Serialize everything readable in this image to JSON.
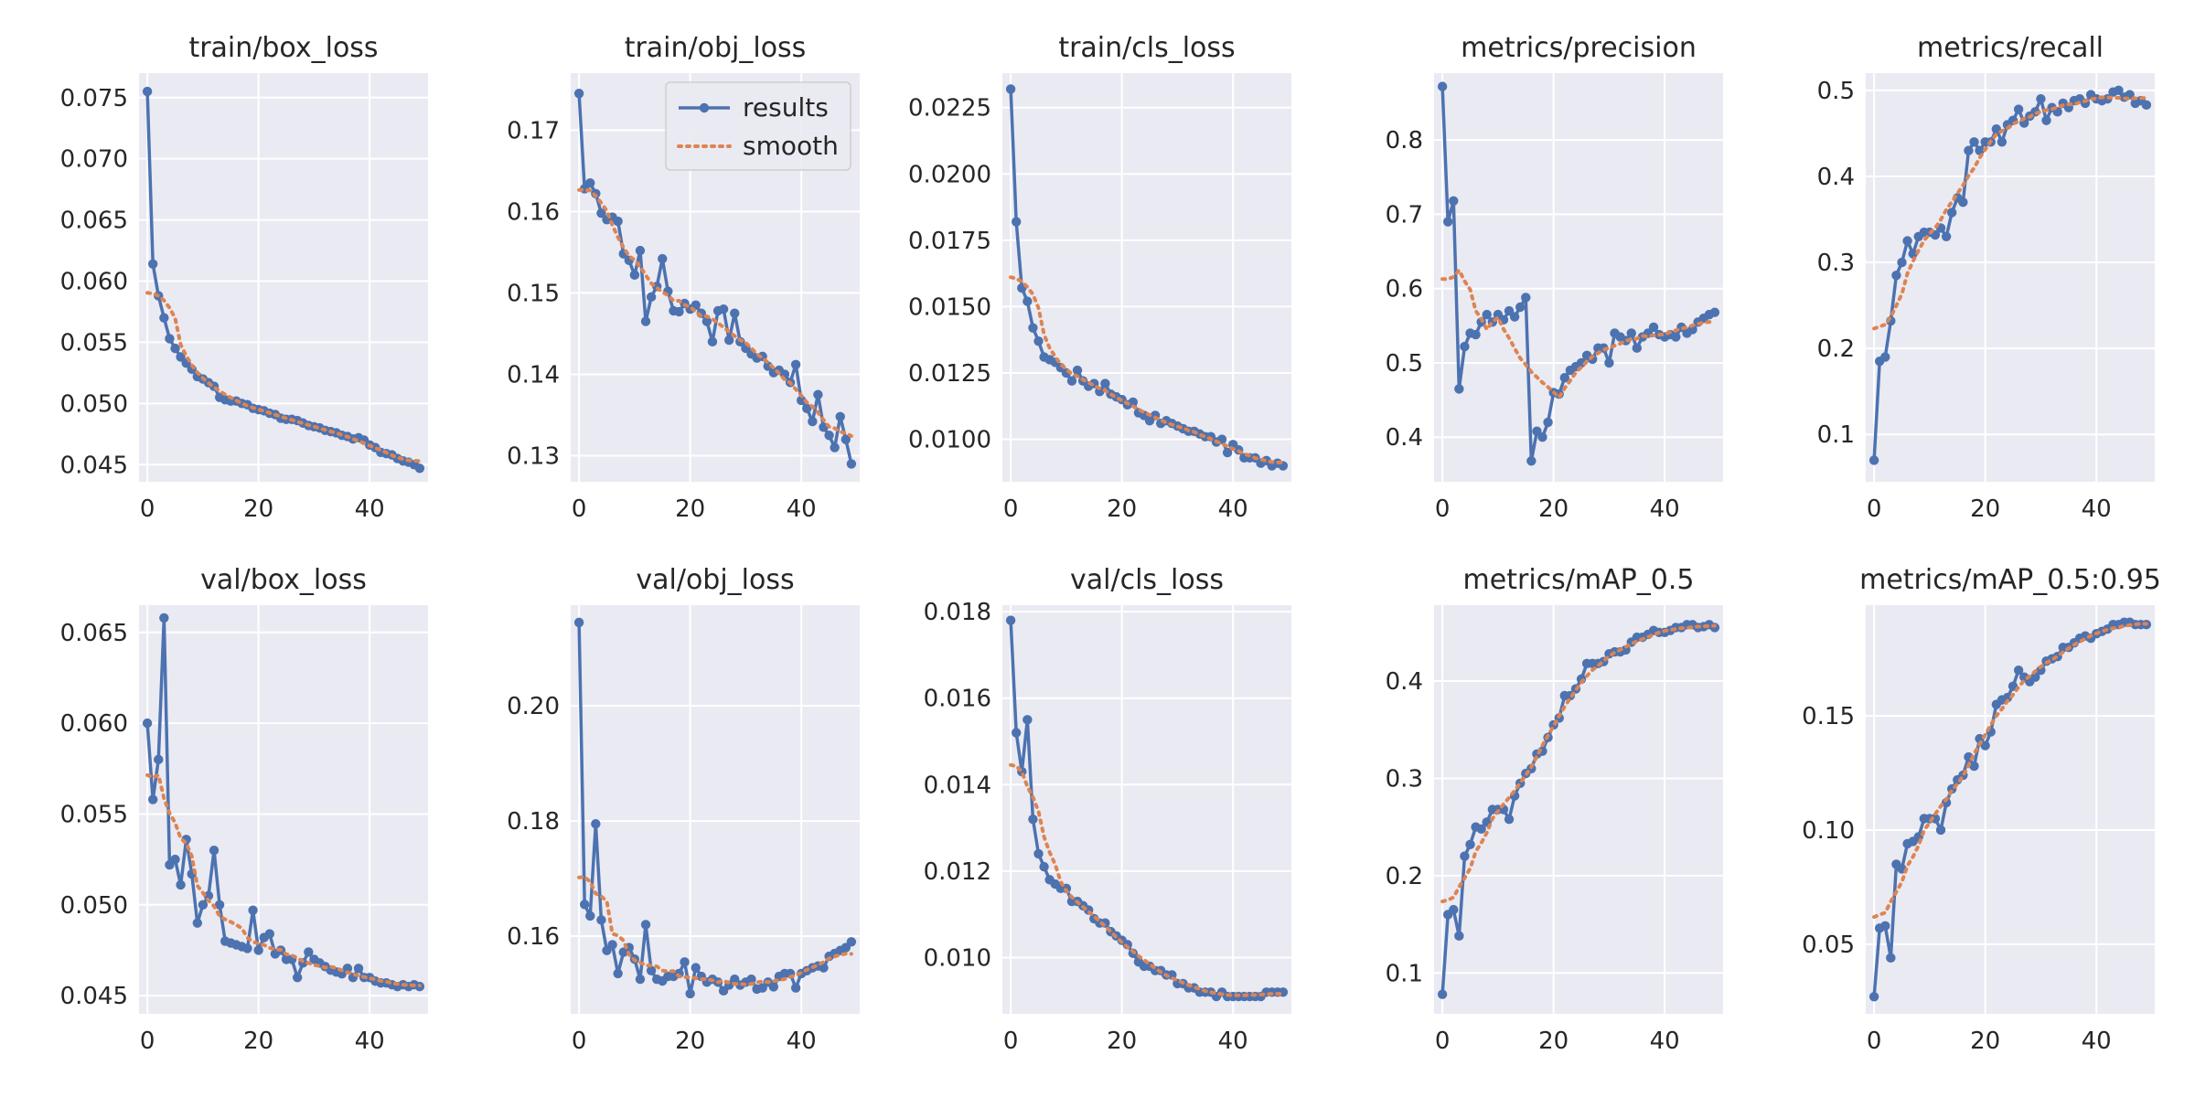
{
  "colors": {
    "results": "#4c72b0",
    "smooth": "#dd8452",
    "panel_bg": "#eaeaf2",
    "grid": "#ffffff"
  },
  "legend": {
    "results_label": "results",
    "smooth_label": "smooth"
  },
  "chart_data": [
    {
      "type": "line",
      "title": "train/box_loss",
      "legend": false,
      "grid": true,
      "xlim": [
        -1.5,
        50.5
      ],
      "ylim": [
        0.0436,
        0.077
      ],
      "xticks": [
        0,
        20,
        40
      ],
      "yticks": [
        0.045,
        0.05,
        0.055,
        0.06,
        0.065,
        0.07,
        0.075
      ],
      "ytick_labels": [
        "0.045",
        "0.050",
        "0.055",
        "0.060",
        "0.065",
        "0.070",
        "0.075"
      ],
      "results": [
        0.0755,
        0.0614,
        0.0588,
        0.057,
        0.0553,
        0.0545,
        0.0538,
        0.0533,
        0.0528,
        0.0522,
        0.052,
        0.0517,
        0.0514,
        0.0505,
        0.0503,
        0.0502,
        0.0502,
        0.05,
        0.0499,
        0.0496,
        0.0495,
        0.0494,
        0.0492,
        0.0491,
        0.0488,
        0.0487,
        0.0487,
        0.0486,
        0.0484,
        0.0482,
        0.0481,
        0.048,
        0.0478,
        0.0477,
        0.0476,
        0.0474,
        0.0473,
        0.0471,
        0.0472,
        0.047,
        0.0466,
        0.0464,
        0.046,
        0.0459,
        0.0458,
        0.0455,
        0.0453,
        0.0452,
        0.045,
        0.0447
      ]
    },
    {
      "type": "line",
      "title": "train/obj_loss",
      "legend": true,
      "grid": true,
      "xlim": [
        -1.5,
        50.5
      ],
      "ylim": [
        0.1268,
        0.177
      ],
      "xticks": [
        0,
        20,
        40
      ],
      "yticks": [
        0.13,
        0.14,
        0.15,
        0.16,
        0.17
      ],
      "ytick_labels": [
        "0.13",
        "0.14",
        "0.15",
        "0.16",
        "0.17"
      ],
      "results": [
        0.1745,
        0.1628,
        0.1635,
        0.1622,
        0.1598,
        0.159,
        0.1593,
        0.1588,
        0.1548,
        0.154,
        0.1522,
        0.1552,
        0.1465,
        0.1495,
        0.1508,
        0.1542,
        0.1502,
        0.1478,
        0.1477,
        0.1487,
        0.148,
        0.1485,
        0.1475,
        0.1465,
        0.144,
        0.1478,
        0.148,
        0.1442,
        0.1475,
        0.144,
        0.1432,
        0.1425,
        0.142,
        0.1422,
        0.141,
        0.1402,
        0.1405,
        0.14,
        0.139,
        0.1412,
        0.1368,
        0.1358,
        0.1342,
        0.1375,
        0.1335,
        0.1325,
        0.131,
        0.1348,
        0.132,
        0.129
      ]
    },
    {
      "type": "line",
      "title": "train/cls_loss",
      "legend": false,
      "grid": true,
      "xlim": [
        -1.5,
        50.5
      ],
      "ylim": [
        0.0084,
        0.0238
      ],
      "xticks": [
        0,
        20,
        40
      ],
      "yticks": [
        0.01,
        0.0125,
        0.015,
        0.0175,
        0.02,
        0.0225
      ],
      "ytick_labels": [
        "0.0100",
        "0.0125",
        "0.0150",
        "0.0175",
        "0.0200",
        "0.0225"
      ],
      "results": [
        0.0232,
        0.0182,
        0.0157,
        0.0152,
        0.0142,
        0.0137,
        0.0131,
        0.013,
        0.0129,
        0.0127,
        0.0125,
        0.0122,
        0.0126,
        0.0122,
        0.012,
        0.0121,
        0.0118,
        0.0121,
        0.0117,
        0.0116,
        0.0115,
        0.0113,
        0.0114,
        0.011,
        0.0109,
        0.0107,
        0.0109,
        0.0106,
        0.0107,
        0.0106,
        0.0105,
        0.0104,
        0.0103,
        0.0103,
        0.0102,
        0.0101,
        0.0101,
        0.0099,
        0.01,
        0.0095,
        0.0098,
        0.0096,
        0.0093,
        0.0093,
        0.0093,
        0.0091,
        0.0092,
        0.009,
        0.0091,
        0.009
      ]
    },
    {
      "type": "line",
      "title": "metrics/precision",
      "legend": false,
      "grid": true,
      "xlim": [
        -1.5,
        50.5
      ],
      "ylim": [
        0.34,
        0.89
      ],
      "xticks": [
        0,
        20,
        40
      ],
      "yticks": [
        0.4,
        0.5,
        0.6,
        0.7,
        0.8
      ],
      "ytick_labels": [
        "0.4",
        "0.5",
        "0.6",
        "0.7",
        "0.8"
      ],
      "results": [
        0.872,
        0.69,
        0.718,
        0.465,
        0.522,
        0.54,
        0.538,
        0.555,
        0.565,
        0.555,
        0.565,
        0.558,
        0.57,
        0.562,
        0.575,
        0.588,
        0.368,
        0.408,
        0.4,
        0.42,
        0.46,
        0.458,
        0.48,
        0.49,
        0.495,
        0.5,
        0.51,
        0.505,
        0.52,
        0.52,
        0.5,
        0.54,
        0.535,
        0.53,
        0.54,
        0.52,
        0.535,
        0.54,
        0.548,
        0.538,
        0.535,
        0.538,
        0.535,
        0.548,
        0.54,
        0.545,
        0.555,
        0.56,
        0.565,
        0.568
      ]
    },
    {
      "type": "line",
      "title": "metrics/recall",
      "legend": false,
      "grid": true,
      "xlim": [
        -1.5,
        50.5
      ],
      "ylim": [
        0.045,
        0.52
      ],
      "xticks": [
        0,
        20,
        40
      ],
      "yticks": [
        0.1,
        0.2,
        0.3,
        0.4,
        0.5
      ],
      "ytick_labels": [
        "0.1",
        "0.2",
        "0.3",
        "0.4",
        "0.5"
      ],
      "results": [
        0.07,
        0.185,
        0.19,
        0.232,
        0.285,
        0.3,
        0.325,
        0.31,
        0.33,
        0.335,
        0.335,
        0.332,
        0.34,
        0.33,
        0.358,
        0.375,
        0.37,
        0.43,
        0.44,
        0.43,
        0.44,
        0.44,
        0.455,
        0.44,
        0.46,
        0.465,
        0.478,
        0.462,
        0.47,
        0.475,
        0.49,
        0.465,
        0.48,
        0.475,
        0.485,
        0.48,
        0.488,
        0.49,
        0.485,
        0.495,
        0.49,
        0.488,
        0.49,
        0.498,
        0.5,
        0.492,
        0.495,
        0.485,
        0.488,
        0.483
      ]
    },
    {
      "type": "line",
      "title": "val/box_loss",
      "legend": false,
      "grid": true,
      "xlim": [
        -1.5,
        50.5
      ],
      "ylim": [
        0.044,
        0.0665
      ],
      "xticks": [
        0,
        20,
        40
      ],
      "yticks": [
        0.045,
        0.05,
        0.055,
        0.06,
        0.065
      ],
      "ytick_labels": [
        "0.045",
        "0.050",
        "0.055",
        "0.060",
        "0.065"
      ],
      "results": [
        0.06,
        0.0558,
        0.058,
        0.0658,
        0.0522,
        0.0525,
        0.0511,
        0.0536,
        0.0517,
        0.049,
        0.05,
        0.0505,
        0.053,
        0.05,
        0.048,
        0.0479,
        0.0478,
        0.0477,
        0.0476,
        0.0497,
        0.0475,
        0.0482,
        0.0484,
        0.0473,
        0.0475,
        0.047,
        0.047,
        0.046,
        0.0468,
        0.0474,
        0.047,
        0.0468,
        0.0466,
        0.0464,
        0.0463,
        0.0462,
        0.0465,
        0.046,
        0.0465,
        0.046,
        0.046,
        0.0458,
        0.0457,
        0.0457,
        0.0456,
        0.0455,
        0.0456,
        0.0455,
        0.0456,
        0.0455
      ]
    },
    {
      "type": "line",
      "title": "val/obj_loss",
      "legend": false,
      "grid": true,
      "xlim": [
        -1.5,
        50.5
      ],
      "ylim": [
        0.1465,
        0.2175
      ],
      "xticks": [
        0,
        20,
        40
      ],
      "yticks": [
        0.16,
        0.18,
        0.2
      ],
      "ytick_labels": [
        "0.16",
        "0.18",
        "0.20"
      ],
      "results": [
        0.2145,
        0.1655,
        0.1635,
        0.1795,
        0.1628,
        0.1575,
        0.1585,
        0.1535,
        0.1572,
        0.158,
        0.156,
        0.1525,
        0.162,
        0.154,
        0.1525,
        0.1522,
        0.153,
        0.153,
        0.1535,
        0.1555,
        0.15,
        0.1545,
        0.153,
        0.152,
        0.1525,
        0.152,
        0.1505,
        0.1515,
        0.1525,
        0.1515,
        0.152,
        0.1525,
        0.1508,
        0.151,
        0.152,
        0.1512,
        0.153,
        0.1535,
        0.1535,
        0.151,
        0.1535,
        0.154,
        0.1545,
        0.1548,
        0.1545,
        0.1565,
        0.157,
        0.1575,
        0.158,
        0.159
      ]
    },
    {
      "type": "line",
      "title": "val/cls_loss",
      "legend": false,
      "grid": true,
      "xlim": [
        -1.5,
        50.5
      ],
      "ylim": [
        0.0087,
        0.01815
      ],
      "xticks": [
        0,
        20,
        40
      ],
      "yticks": [
        0.01,
        0.012,
        0.014,
        0.016,
        0.018
      ],
      "ytick_labels": [
        "0.010",
        "0.012",
        "0.014",
        "0.016",
        "0.018"
      ],
      "results": [
        0.0178,
        0.0152,
        0.0143,
        0.0155,
        0.0132,
        0.0124,
        0.0121,
        0.0118,
        0.0117,
        0.0116,
        0.0116,
        0.0113,
        0.0113,
        0.0112,
        0.0111,
        0.0109,
        0.0108,
        0.0108,
        0.0106,
        0.0105,
        0.0104,
        0.0103,
        0.0101,
        0.0099,
        0.0098,
        0.0098,
        0.0097,
        0.0097,
        0.0096,
        0.0096,
        0.0094,
        0.0094,
        0.0093,
        0.0093,
        0.0092,
        0.0092,
        0.0092,
        0.0091,
        0.0092,
        0.0091,
        0.0091,
        0.0091,
        0.0091,
        0.0091,
        0.0091,
        0.0091,
        0.0092,
        0.0092,
        0.0092,
        0.0092
      ]
    },
    {
      "type": "line",
      "title": "metrics/mAP_0.5",
      "legend": false,
      "grid": true,
      "xlim": [
        -1.5,
        50.5
      ],
      "ylim": [
        0.058,
        0.478
      ],
      "xticks": [
        0,
        20,
        40
      ],
      "yticks": [
        0.1,
        0.2,
        0.3,
        0.4
      ],
      "ytick_labels": [
        "0.1",
        "0.2",
        "0.3",
        "0.4"
      ],
      "results": [
        0.078,
        0.16,
        0.165,
        0.138,
        0.22,
        0.232,
        0.25,
        0.248,
        0.255,
        0.268,
        0.268,
        0.268,
        0.258,
        0.282,
        0.295,
        0.305,
        0.31,
        0.325,
        0.328,
        0.342,
        0.355,
        0.362,
        0.385,
        0.385,
        0.392,
        0.402,
        0.418,
        0.418,
        0.418,
        0.42,
        0.428,
        0.43,
        0.43,
        0.432,
        0.44,
        0.445,
        0.445,
        0.448,
        0.452,
        0.45,
        0.45,
        0.452,
        0.455,
        0.455,
        0.458,
        0.458,
        0.455,
        0.456,
        0.458,
        0.455
      ]
    },
    {
      "type": "line",
      "title": "metrics/mAP_0.5:0.95",
      "legend": false,
      "grid": true,
      "xlim": [
        -1.5,
        50.5
      ],
      "ylim": [
        0.0195,
        0.1985
      ],
      "xticks": [
        0,
        20,
        40
      ],
      "yticks": [
        0.05,
        0.1,
        0.15
      ],
      "ytick_labels": [
        "0.05",
        "0.10",
        "0.15"
      ],
      "results": [
        0.027,
        0.057,
        0.058,
        0.044,
        0.085,
        0.083,
        0.094,
        0.095,
        0.097,
        0.105,
        0.105,
        0.105,
        0.1,
        0.112,
        0.118,
        0.122,
        0.124,
        0.132,
        0.128,
        0.14,
        0.137,
        0.143,
        0.155,
        0.157,
        0.158,
        0.163,
        0.17,
        0.167,
        0.165,
        0.167,
        0.17,
        0.174,
        0.175,
        0.176,
        0.18,
        0.18,
        0.182,
        0.184,
        0.185,
        0.184,
        0.186,
        0.187,
        0.188,
        0.19,
        0.19,
        0.191,
        0.191,
        0.19,
        0.19,
        0.19
      ]
    }
  ]
}
